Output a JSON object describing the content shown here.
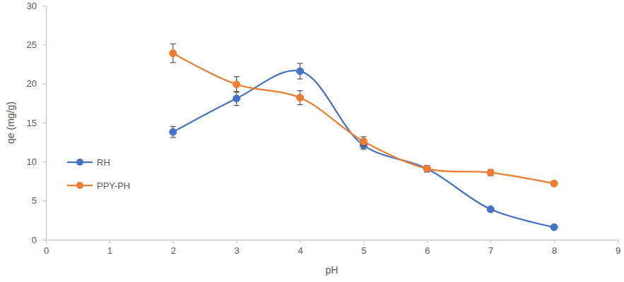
{
  "chart_data": {
    "type": "line",
    "x_label": "pH",
    "y_label": "qe (mg/g)",
    "x": [
      2,
      3,
      4,
      5,
      6,
      7,
      8
    ],
    "series": [
      {
        "name": "RH",
        "color": "#4472c4",
        "marker": "circle",
        "line_style": "smooth",
        "values": [
          13.8,
          18.1,
          21.6,
          12.1,
          9.1,
          3.9,
          1.6
        ],
        "errors": [
          0.7,
          0.9,
          1.0,
          0.5,
          0.4,
          0.2,
          0.1
        ]
      },
      {
        "name": "PPY-PH",
        "color": "#ed7d31",
        "marker": "circle",
        "line_style": "smooth",
        "values": [
          23.9,
          19.9,
          18.2,
          12.6,
          9.1,
          8.6,
          7.2
        ],
        "errors": [
          1.2,
          1.0,
          0.9,
          0.6,
          0.4,
          0.4,
          0.3
        ]
      }
    ],
    "xlim": [
      0,
      9
    ],
    "xticks": [
      0,
      1,
      2,
      3,
      4,
      5,
      6,
      7,
      8,
      9
    ],
    "ylim": [
      0,
      30
    ],
    "yticks": [
      0,
      5,
      10,
      15,
      20,
      25,
      30
    ],
    "grid": false,
    "legend": "left"
  }
}
